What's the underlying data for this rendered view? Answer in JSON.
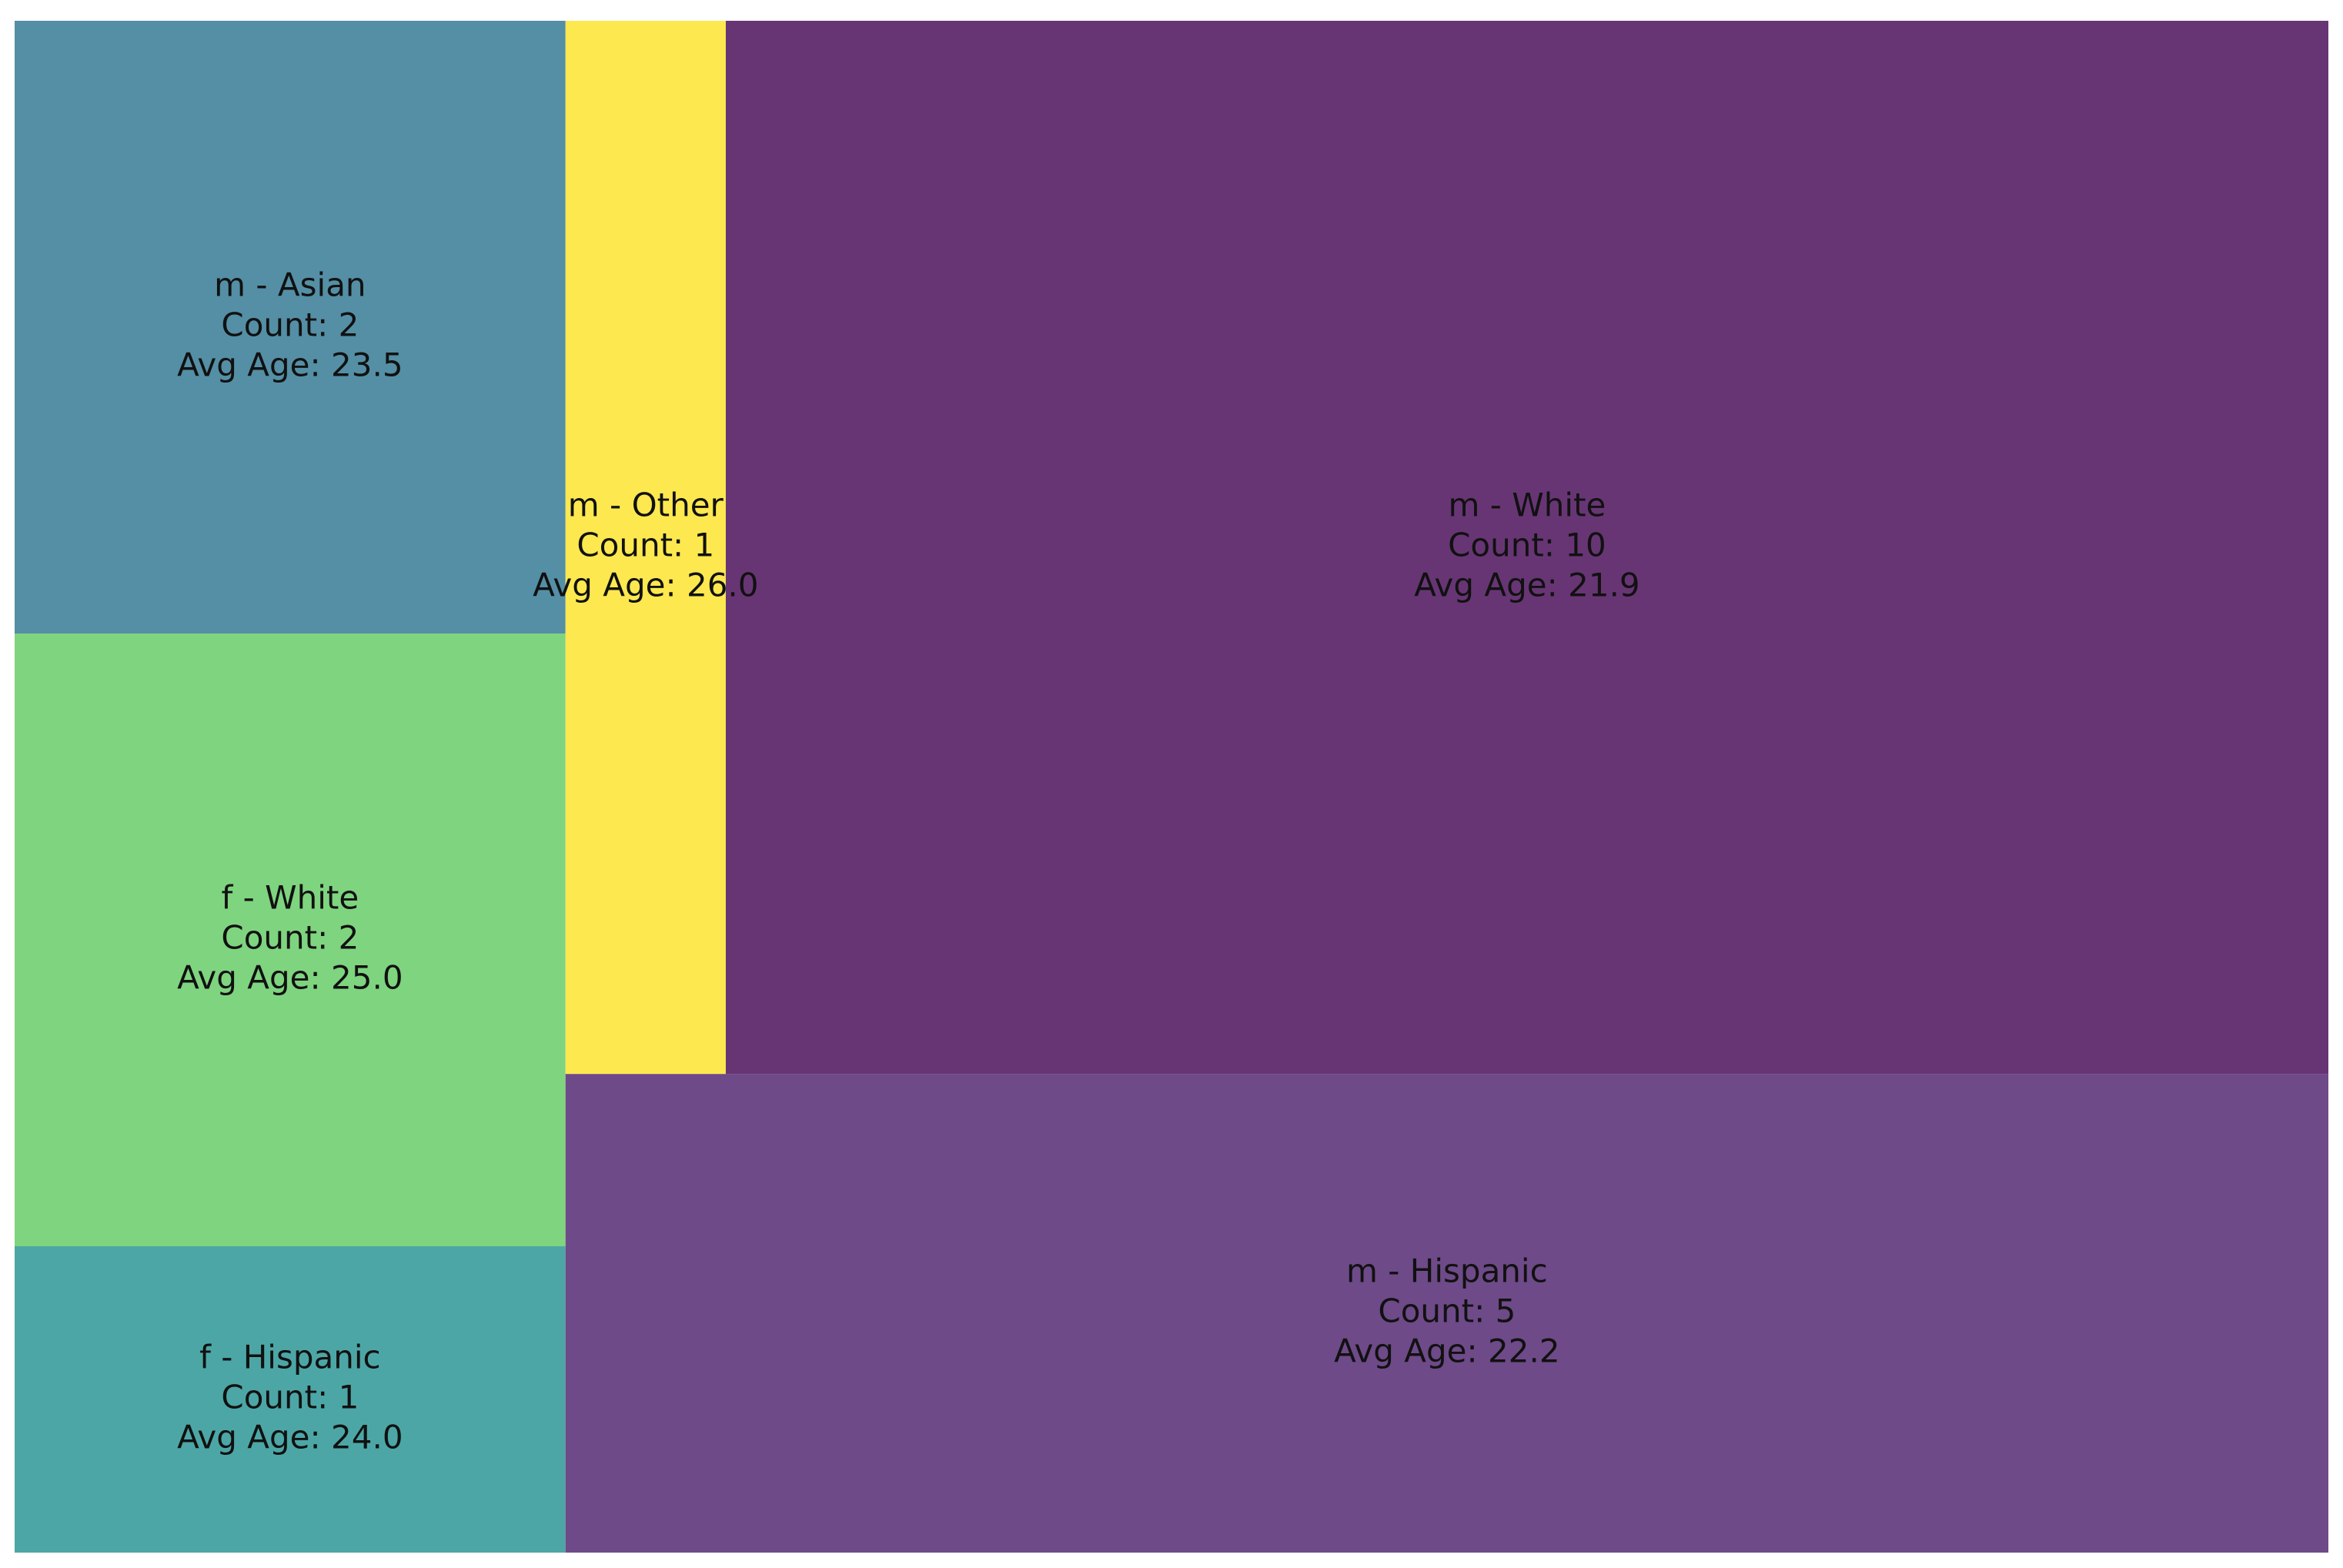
{
  "chart_data": {
    "type": "treemap",
    "categories": [
      "f - Hispanic",
      "f - White",
      "m - Asian",
      "m - Hispanic",
      "m - Other",
      "m - White"
    ],
    "values": [
      1,
      2,
      2,
      5,
      1,
      10
    ],
    "value_labels": [
      "Count: 1",
      "Count: 2",
      "Count: 2",
      "Count: 5",
      "Count: 1",
      "Count: 10"
    ],
    "avg_age": [
      24.0,
      25.0,
      23.5,
      22.2,
      26.0,
      21.9
    ],
    "avg_age_labels": [
      "Avg Age: 24.0",
      "Avg Age: 25.0",
      "Avg Age: 23.5",
      "Avg Age: 22.2",
      "Avg Age: 26.0",
      "Avg Age: 21.9"
    ],
    "colors": [
      "#4da6a6",
      "#7fd47f",
      "#548fa5",
      "#6e4a88",
      "#fde84f",
      "#673574"
    ]
  }
}
